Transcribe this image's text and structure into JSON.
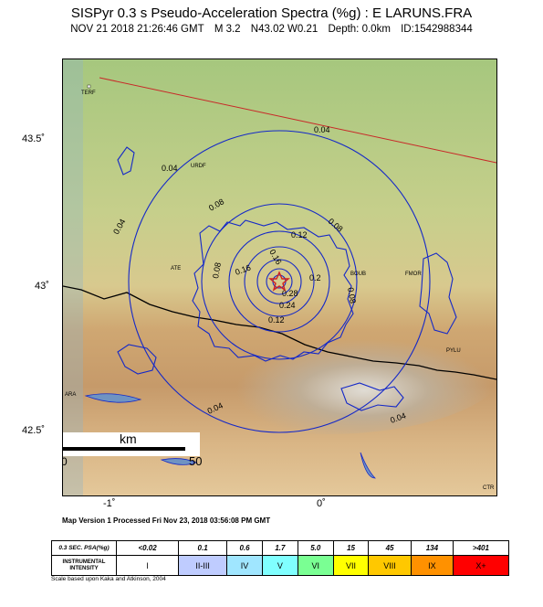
{
  "header": {
    "title": "SISPyr 0.3 s Pseudo-Acceleration Spectra (%g) : E LARUNS.FRA",
    "datetime": "NOV 21 2018 21:26:46  GMT",
    "magnitude": "M 3.2",
    "location": "N43.02 W0.21",
    "depth": "Depth: 0.0km",
    "event_id": "ID:1542988344"
  },
  "map": {
    "lat_ticks": [
      "43.5˚",
      "43˚",
      "42.5˚"
    ],
    "lon_ticks": [
      "-1˚",
      "0˚"
    ],
    "towns": [
      "TERF",
      "URDF",
      "ATE",
      "FMOR",
      "PYLU",
      "ARA",
      "BOUB",
      "CTR"
    ],
    "contour_labels": [
      "0.04",
      "0.08",
      "0.12",
      "0.16",
      "0.2",
      "0.24",
      "0.28"
    ],
    "scale_bar": {
      "unit": "km",
      "start": "0",
      "end": "50"
    },
    "epicenter_marker": "star-icon",
    "colors": {
      "contour": "#1428c8",
      "border": "#000000",
      "fault": "#c82828",
      "epicenter": "#d02020"
    }
  },
  "version_text": "Map Version 1 Processed Fri Nov 23, 2018 03:56:08 PM GMT",
  "legend": {
    "psa_label": "0.3 SEC. PSA(%g)",
    "psa_values": [
      "<0.02",
      "0.1",
      "0.6",
      "1.7",
      "5.0",
      "15",
      "45",
      "134",
      ">401"
    ],
    "intensity_label_1": "INSTRUMENTAL",
    "intensity_label_2": "INTENSITY",
    "intensity_values": [
      "I",
      "II-III",
      "IV",
      "V",
      "VI",
      "VII",
      "VIII",
      "IX",
      "X+"
    ],
    "intensity_colors": [
      "#ffffff",
      "#bfccff",
      "#a0e6ff",
      "#80ffff",
      "#7aff93",
      "#ffff00",
      "#ffc800",
      "#ff9100",
      "#ff0000"
    ]
  },
  "scale_note": "Scale based upon Kaka and Atkinson, 2004"
}
